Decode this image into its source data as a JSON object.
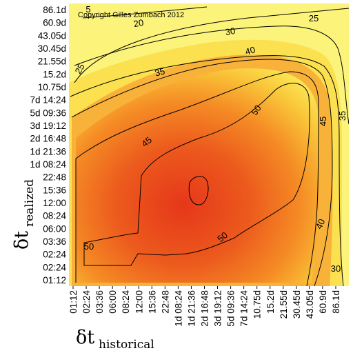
{
  "chart_data": {
    "type": "heatmap",
    "title": "",
    "annotation": "Copyright Gilles Zumbach 2012",
    "xlabel": {
      "symbol": "δt",
      "subscript": "historical"
    },
    "ylabel": {
      "symbol": "δt",
      "subscript": "realized"
    },
    "x_ticks": [
      "01:12",
      "02:24",
      "03:36",
      "06:00",
      "08:24",
      "12:00",
      "15:36",
      "22:48",
      "1d 08:24",
      "1d 21:36",
      "2d 16:48",
      "3d 19:12",
      "5d 09:36",
      "7d 14:24",
      "10.75d",
      "15.2d",
      "21.55d",
      "30.45d",
      "43.05d",
      "60.9d",
      "86.1d"
    ],
    "y_ticks": [
      "01:12",
      "02:24",
      "02:24",
      "03:36",
      "06:00",
      "08:24",
      "12:00",
      "15:36",
      "22:48",
      "1d 08:24",
      "1d 21:36",
      "2d 16:48",
      "3d 19:12",
      "5d 09:36",
      "7d 14:24",
      "10.75d",
      "15.2d",
      "21.55d",
      "30.45d",
      "43.05d",
      "60.9d",
      "86.1d"
    ],
    "contour_levels": [
      20,
      25,
      30,
      35,
      40,
      45,
      50
    ],
    "contour_labels": [
      {
        "text": "20"
      },
      {
        "text": "25"
      },
      {
        "text": "25"
      },
      {
        "text": "30"
      },
      {
        "text": "35"
      },
      {
        "text": "35"
      },
      {
        "text": "40"
      },
      {
        "text": "40"
      },
      {
        "text": "45"
      },
      {
        "text": "45"
      },
      {
        "text": "50"
      },
      {
        "text": "50"
      },
      {
        "text": "50"
      },
      {
        "text": "30"
      },
      {
        "text": "5"
      }
    ],
    "colors": {
      "high": "#e8401c",
      "mid": "#f79a26",
      "low": "#fbf064",
      "lowest": "#fbfa8e"
    },
    "grid": false,
    "legend": "none"
  }
}
